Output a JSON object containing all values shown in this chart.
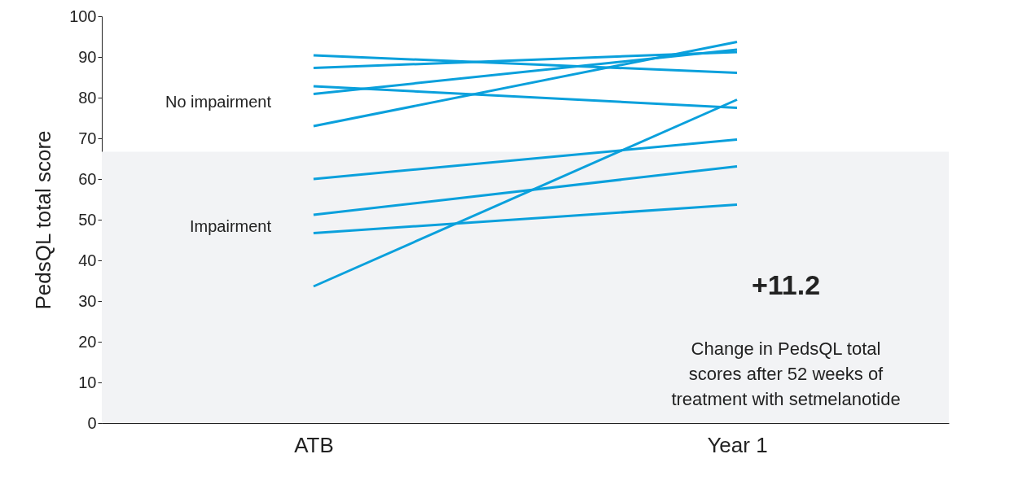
{
  "chart_data": {
    "type": "line",
    "ylabel": "PedsQL total score",
    "categories": [
      "ATB",
      "Year 1"
    ],
    "series": [
      {
        "color": "#0aa0dc",
        "values": [
          90.4,
          86.1
        ]
      },
      {
        "color": "#0aa0dc",
        "values": [
          87.3,
          91.2
        ]
      },
      {
        "color": "#0aa0dc",
        "values": [
          82.8,
          77.5
        ]
      },
      {
        "color": "#0aa0dc",
        "values": [
          80.9,
          91.8
        ]
      },
      {
        "color": "#0aa0dc",
        "values": [
          73.0,
          93.7
        ]
      },
      {
        "color": "#0aa0dc",
        "values": [
          60.0,
          69.7
        ]
      },
      {
        "color": "#0aa0dc",
        "values": [
          51.2,
          63.1
        ]
      },
      {
        "color": "#0aa0dc",
        "values": [
          46.7,
          53.7
        ]
      },
      {
        "color": "#0aa0dc",
        "values": [
          33.6,
          79.5
        ]
      }
    ],
    "ylim": [
      0,
      100
    ],
    "yticks": [
      0,
      10,
      20,
      30,
      40,
      50,
      60,
      70,
      80,
      90,
      100
    ],
    "grid": false,
    "marker": "none",
    "line_style": "solid",
    "bands": [
      {
        "axis": "y",
        "from": 0,
        "to": 66.7,
        "color": "#f2f3f5"
      }
    ],
    "annotations": [
      "No impairment",
      "Impairment",
      "+11.2",
      "Change in PedsQL total scores after 52 weeks of treatment with setmelanotide"
    ]
  }
}
